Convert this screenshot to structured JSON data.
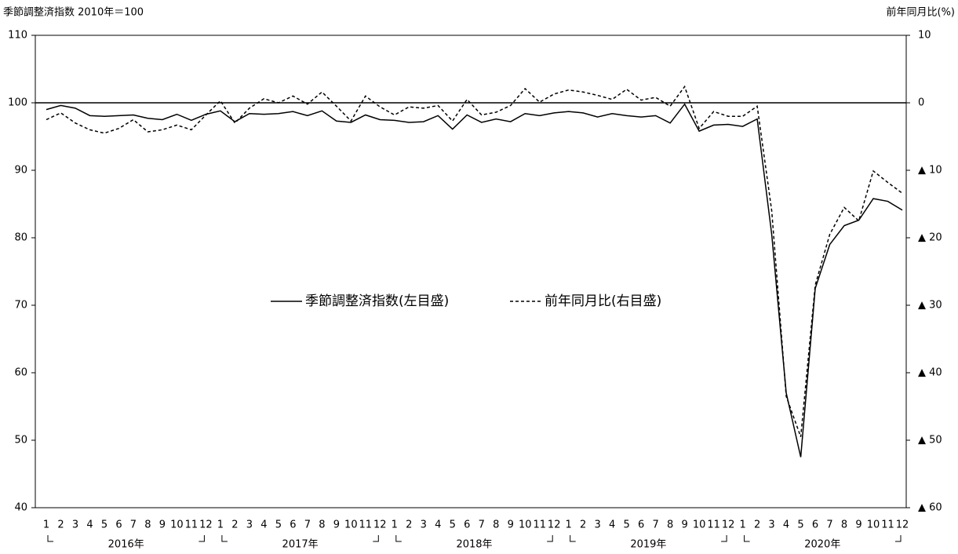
{
  "chart_data": {
    "type": "line",
    "y_axis_title": "季節調整済指数  2010年＝100",
    "y2_axis_title": "前年同月比(%)",
    "categories": [
      "1",
      "2",
      "3",
      "4",
      "5",
      "6",
      "7",
      "8",
      "9",
      "10",
      "11",
      "12",
      "1",
      "2",
      "3",
      "4",
      "5",
      "6",
      "7",
      "8",
      "9",
      "10",
      "11",
      "12",
      "1",
      "2",
      "3",
      "4",
      "5",
      "6",
      "7",
      "8",
      "9",
      "10",
      "11",
      "12",
      "1",
      "2",
      "3",
      "4",
      "5",
      "6",
      "7",
      "8",
      "9",
      "10",
      "11",
      "12",
      "1",
      "2",
      "3",
      "4",
      "5",
      "6",
      "7",
      "8",
      "9",
      "10",
      "11",
      "12"
    ],
    "years": [
      "2016年",
      "2017年",
      "2018年",
      "2019年",
      "2020年"
    ],
    "ylim": [
      40,
      110
    ],
    "yticks": [
      40,
      50,
      60,
      70,
      80,
      90,
      100,
      110
    ],
    "y2lim": [
      -60,
      10
    ],
    "y2ticks": [
      {
        "value": -60,
        "label": "▲ 60"
      },
      {
        "value": -50,
        "label": "▲ 50"
      },
      {
        "value": -40,
        "label": "▲ 40"
      },
      {
        "value": -30,
        "label": "▲ 30"
      },
      {
        "value": -20,
        "label": "▲ 20"
      },
      {
        "value": -10,
        "label": "▲ 10"
      },
      0,
      10
    ],
    "reference_line": 100,
    "series": [
      {
        "name": "季節調整済指数(左目盛)",
        "color": "#000000",
        "dash": "solid",
        "values": [
          99.0,
          99.6,
          99.2,
          98.1,
          98.0,
          98.1,
          98.2,
          97.7,
          97.5,
          98.3,
          97.4,
          98.3,
          98.8,
          97.2,
          98.4,
          98.3,
          98.4,
          98.7,
          98.1,
          98.8,
          97.3,
          97.1,
          98.2,
          97.5,
          97.4,
          97.1,
          97.2,
          98.1,
          96.1,
          98.2,
          97.1,
          97.6,
          97.2,
          98.4,
          98.1,
          98.5,
          98.7,
          98.5,
          97.9,
          98.4,
          98.1,
          97.9,
          98.1,
          97.0,
          99.8,
          95.8,
          96.7,
          96.8,
          96.5,
          97.6,
          80.5,
          57.0,
          47.5,
          72.5,
          79.0,
          81.8,
          82.6,
          85.8,
          85.4,
          84.1
        ]
      },
      {
        "name": "前年同月比(右目盛)",
        "color": "#000000",
        "dash": "dashed",
        "axis": "y2",
        "values": [
          -2.5,
          -1.5,
          -3.0,
          -4.0,
          -4.5,
          -3.8,
          -2.5,
          -4.3,
          -4.0,
          -3.3,
          -4.0,
          -1.8,
          0.3,
          -3.0,
          -0.8,
          0.6,
          0.0,
          1.0,
          -0.2,
          1.6,
          -0.5,
          -2.7,
          1.0,
          -0.6,
          -1.8,
          -0.6,
          -0.8,
          -0.4,
          -2.7,
          0.5,
          -1.8,
          -1.4,
          -0.4,
          2.1,
          0.1,
          1.3,
          1.9,
          1.6,
          1.1,
          0.5,
          2.0,
          0.4,
          0.8,
          -0.5,
          2.4,
          -3.8,
          -1.3,
          -2.0,
          -2.0,
          -0.5,
          -16.0,
          -43.5,
          -49.5,
          -27.0,
          -19.5,
          -15.5,
          -17.5,
          -10.1,
          -11.8,
          -13.4
        ]
      }
    ]
  }
}
